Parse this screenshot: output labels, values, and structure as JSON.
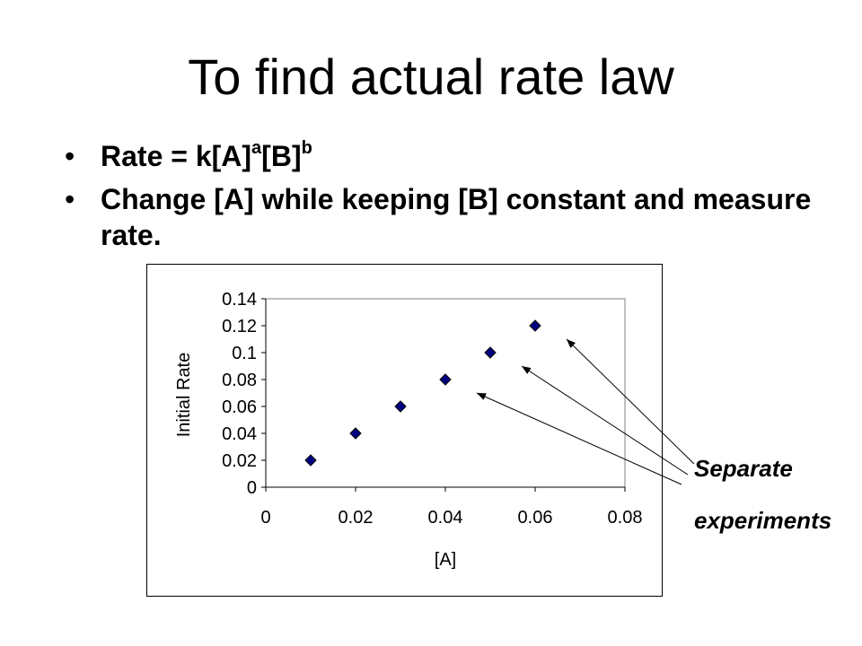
{
  "slide": {
    "title": "To find actual rate law",
    "bullets": [
      {
        "marker": "•",
        "text": "Rate = k[A]",
        "sup1": "a",
        "mid": "[B]",
        "sup2": "b"
      },
      {
        "marker": "•",
        "text": "Change [A] while keeping [B] constant and measure rate."
      }
    ],
    "annotation": {
      "line1": "Separate",
      "line2": "experiments"
    }
  },
  "chart_data": {
    "type": "scatter",
    "xlabel": "[A]",
    "ylabel": "Initial Rate",
    "xlim": [
      0,
      0.08
    ],
    "ylim": [
      0,
      0.14
    ],
    "x_ticks": [
      "0",
      "0.02",
      "0.04",
      "0.06",
      "0.08"
    ],
    "y_ticks": [
      "0",
      "0.02",
      "0.04",
      "0.06",
      "0.08",
      "0.1",
      "0.12",
      "0.14"
    ],
    "x": [
      0.01,
      0.02,
      0.03,
      0.04,
      0.05,
      0.06
    ],
    "y": [
      0.02,
      0.04,
      0.06,
      0.08,
      0.1,
      0.12
    ],
    "marker": "diamond",
    "marker_color": "#000080",
    "annotated_points": [
      3,
      4,
      5
    ],
    "grid": false,
    "legend": "none"
  }
}
